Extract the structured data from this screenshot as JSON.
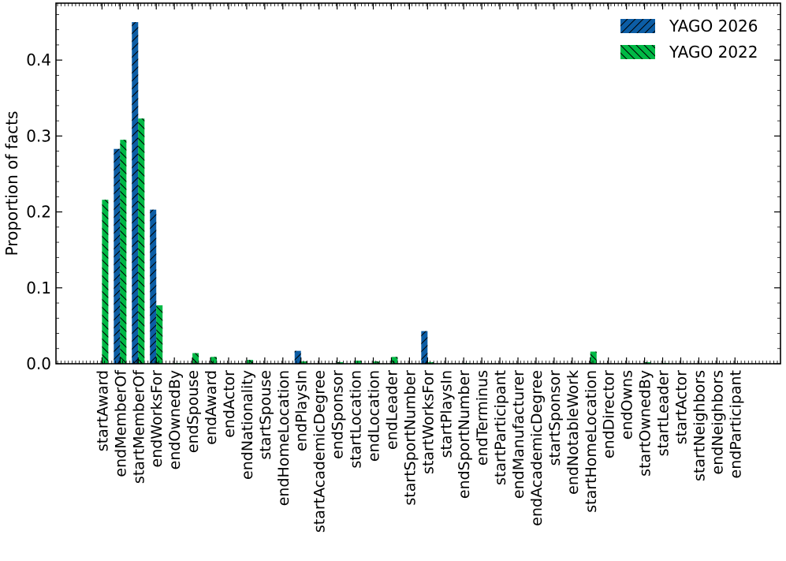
{
  "chart_data": {
    "type": "bar",
    "title": "",
    "xlabel": "",
    "ylabel": "Proportion of facts",
    "ylim": [
      0,
      0.475
    ],
    "yticks": [
      0.0,
      0.1,
      0.2,
      0.3,
      0.4
    ],
    "ytick_labels": [
      "0.0",
      "0.1",
      "0.2",
      "0.3",
      "0.4"
    ],
    "grid": false,
    "legend_position": "top-right",
    "categories": [
      "startAward",
      "endMemberOf",
      "startMemberOf",
      "endWorksFor",
      "endOwnedBy",
      "endSpouse",
      "endAward",
      "endActor",
      "endNationality",
      "startSpouse",
      "endHomeLocation",
      "endPlaysIn",
      "startAcademicDegree",
      "endSponsor",
      "startLocation",
      "endLocation",
      "endLeader",
      "startSportNumber",
      "startWorksFor",
      "startPlaysIn",
      "endSportNumber",
      "endTerminus",
      "startParticipant",
      "endManufacturer",
      "endAcademicDegree",
      "startSponsor",
      "endNotableWork",
      "startHomeLocation",
      "endDirector",
      "endOwns",
      "startOwnedBy",
      "startLeader",
      "startActor",
      "startNeighbors",
      "endNeighbors",
      "endParticipant"
    ],
    "series": [
      {
        "name": "YAGO 2026",
        "color": "#0C5DA5",
        "hatch": "forward-diagonal",
        "values": [
          0.0,
          0.283,
          0.45,
          0.203,
          0.0,
          0.0,
          0.0,
          0.0,
          0.0,
          0.0,
          0.0,
          0.017,
          0.0,
          0.0,
          0.0,
          0.0,
          0.0,
          0.0,
          0.043,
          0.0,
          0.0,
          0.0,
          0.0,
          0.0,
          0.0,
          0.0,
          0.0,
          0.0,
          0.0,
          0.0,
          0.0,
          0.0,
          0.0,
          0.0,
          0.0,
          0.0
        ]
      },
      {
        "name": "YAGO 2022",
        "color": "#00B945",
        "hatch": "backward-diagonal",
        "values": [
          0.216,
          0.295,
          0.323,
          0.077,
          0.001,
          0.014,
          0.009,
          0.0,
          0.005,
          0.0,
          0.0,
          0.003,
          0.0,
          0.002,
          0.004,
          0.003,
          0.009,
          0.0,
          0.002,
          0.0,
          0.001,
          0.0,
          0.0,
          0.0,
          0.0,
          0.0,
          0.0,
          0.016,
          0.0,
          0.0,
          0.002,
          0.001,
          0.0,
          0.0,
          0.0,
          0.0
        ]
      }
    ]
  }
}
